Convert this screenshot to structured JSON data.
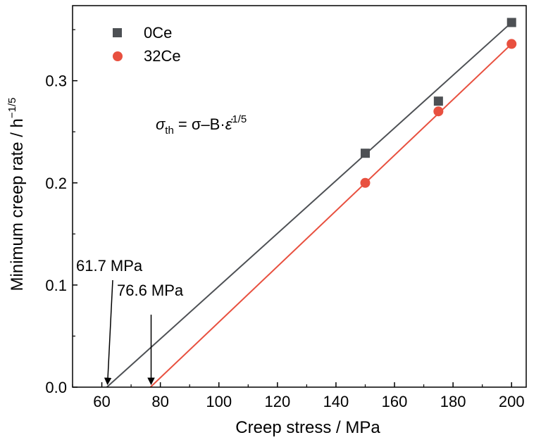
{
  "chart_data": {
    "type": "scatter",
    "title": "",
    "xlabel": "Creep stress / MPa",
    "ylabel": "Minimum creep rate / h",
    "ylabel_exponent": "−1/5",
    "xlim": [
      50,
      205
    ],
    "ylim": [
      0,
      0.3735
    ],
    "x_ticks": [
      60,
      80,
      100,
      120,
      140,
      160,
      180,
      200
    ],
    "y_ticks": [
      0.0,
      0.1,
      0.2,
      0.3
    ],
    "y_tick_labels": [
      "0.0",
      "0.1",
      "0.2",
      "0.3"
    ],
    "grid": false,
    "legend_position": "top-left",
    "series": [
      {
        "name": "0Ce",
        "marker": "square",
        "color": "#4d5054",
        "x": [
          150,
          175,
          200
        ],
        "y": [
          0.229,
          0.28,
          0.357
        ],
        "fit": {
          "x": [
            61.7,
            200
          ],
          "y": [
            0.0,
            0.357
          ]
        }
      },
      {
        "name": "32Ce",
        "marker": "circle",
        "color": "#e8503f",
        "x": [
          150,
          175,
          200
        ],
        "y": [
          0.2,
          0.27,
          0.336
        ],
        "fit": {
          "x": [
            76.6,
            200
          ],
          "y": [
            0.0,
            0.336
          ]
        }
      }
    ],
    "annotations": [
      {
        "text": "61.7 MPa",
        "x": 61.7
      },
      {
        "text": "76.6 MPa",
        "x": 76.6
      }
    ],
    "formula": {
      "sigma": "σ",
      "sub": "th",
      "rhs": " = σ–B·",
      "eps": "ε̇",
      "sup": "1/5"
    }
  }
}
